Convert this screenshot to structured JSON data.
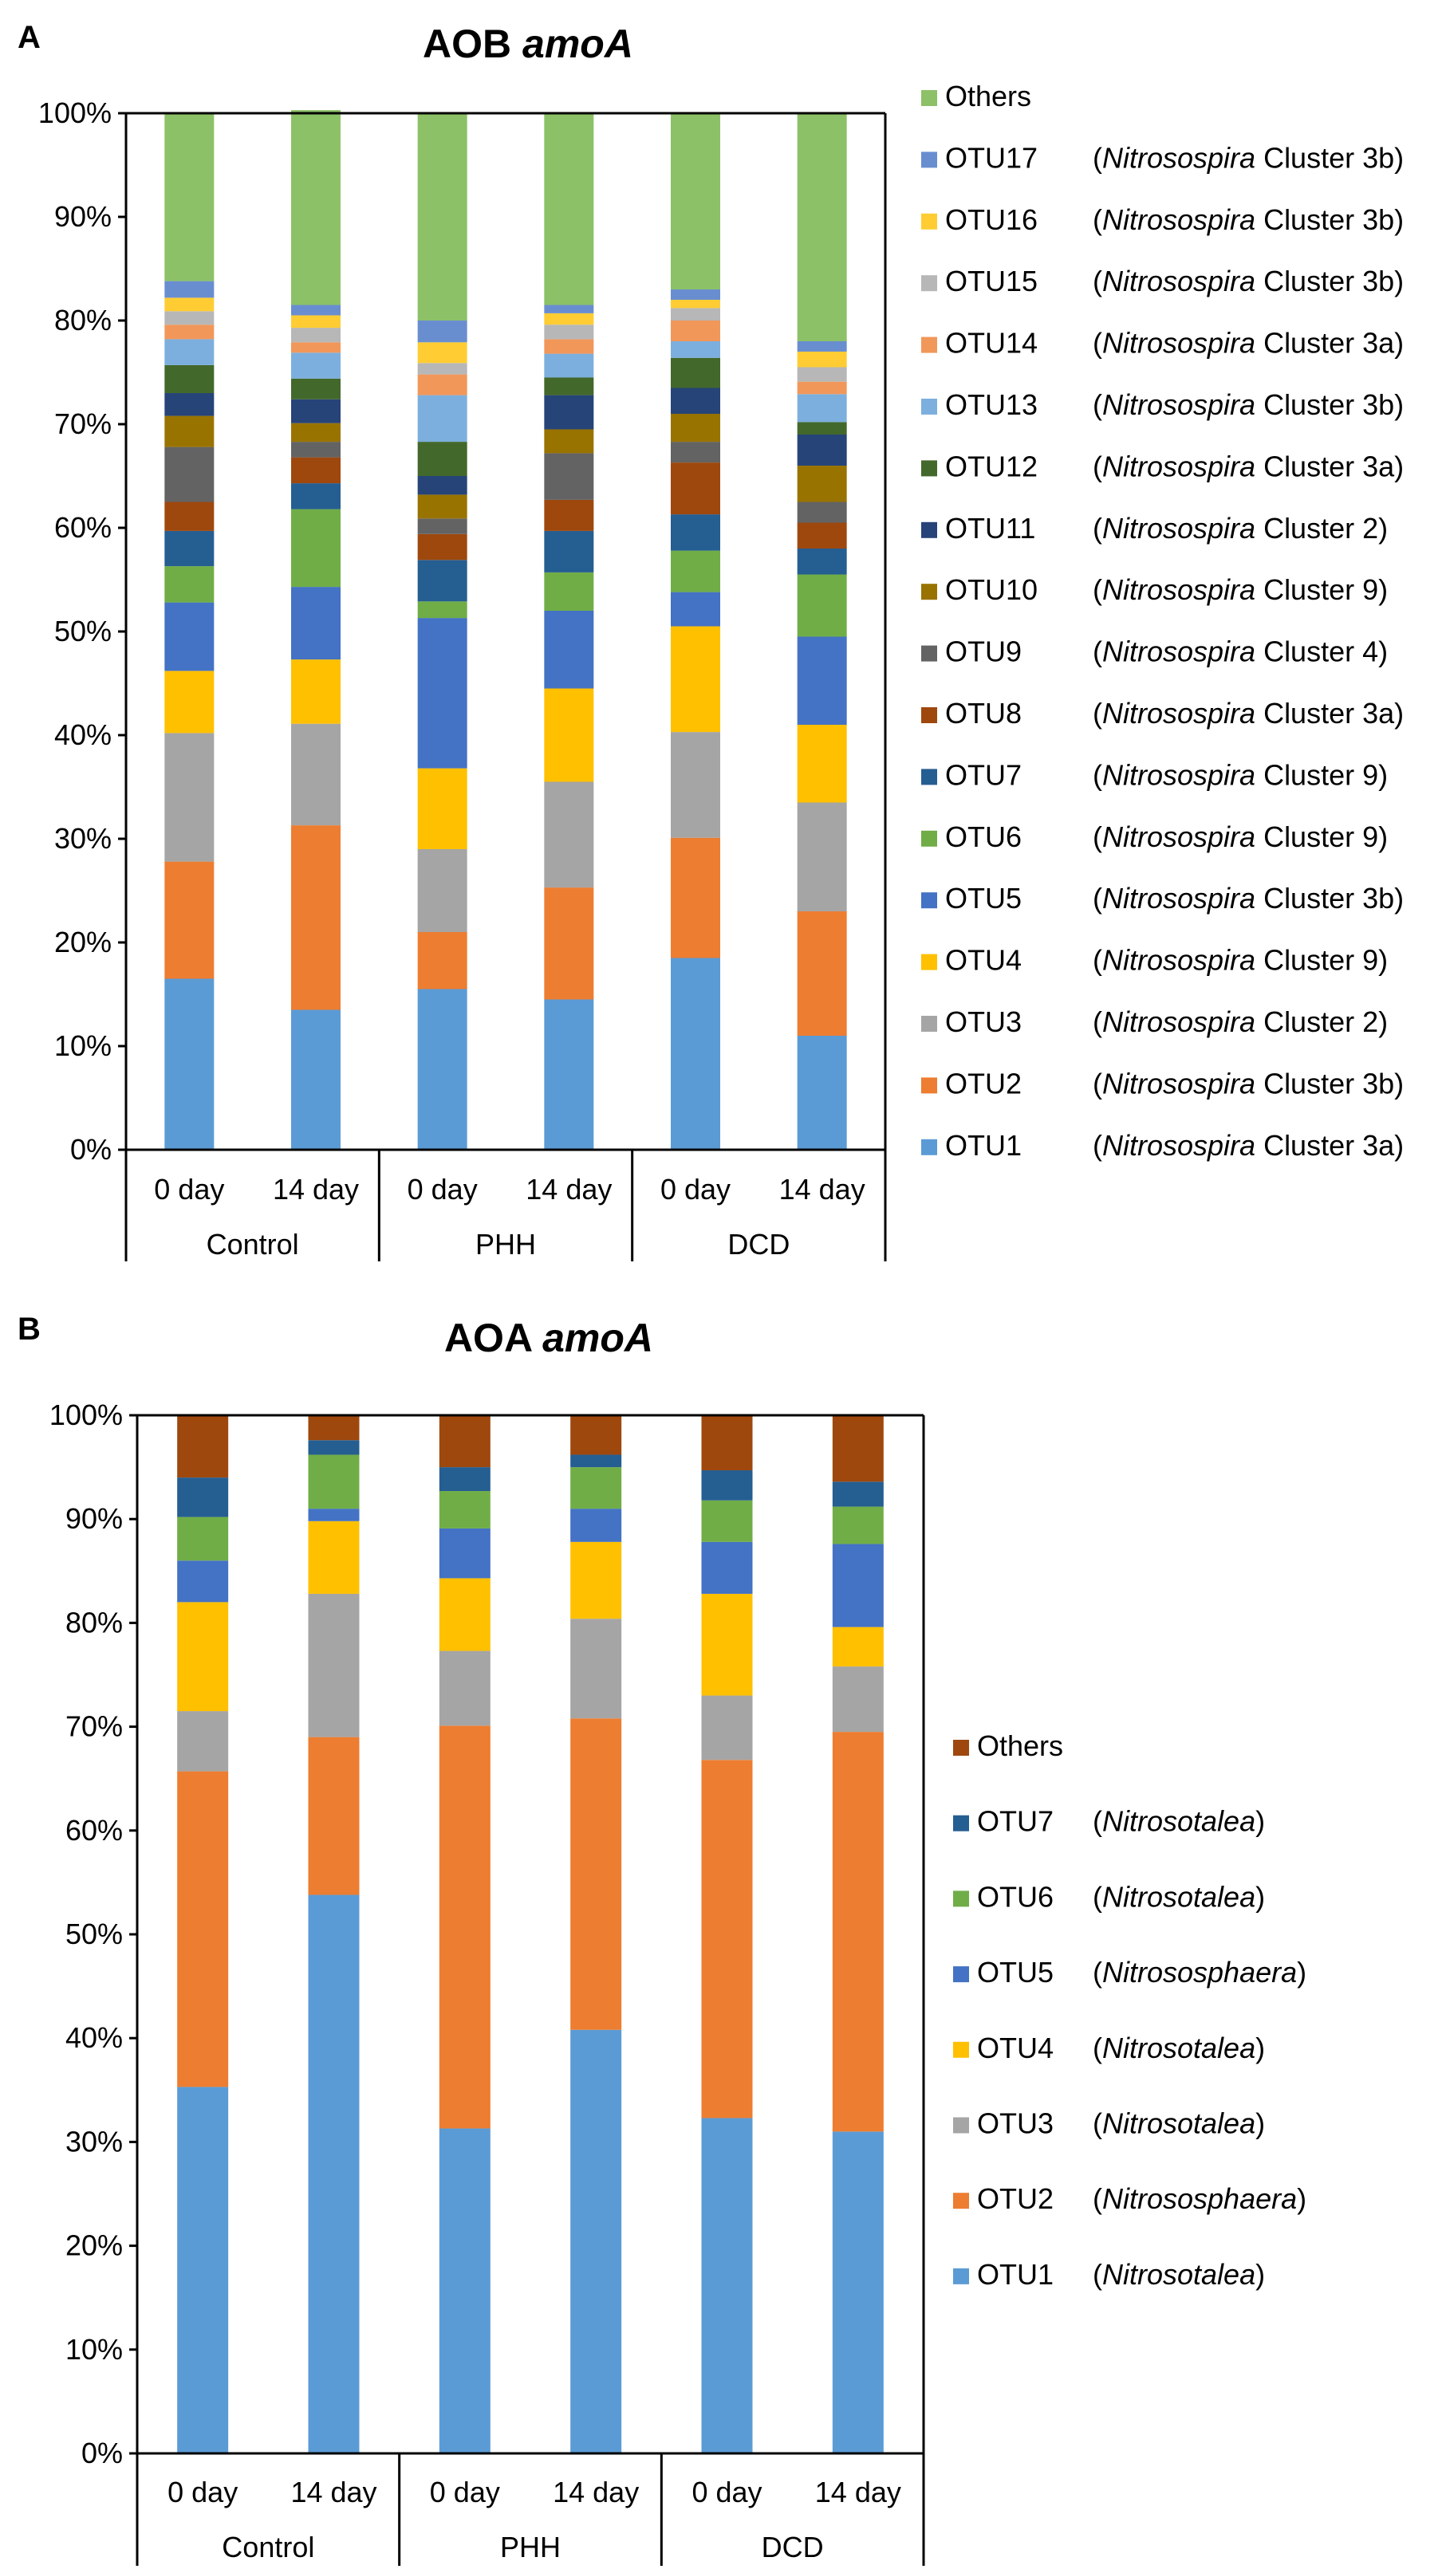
{
  "figure": {
    "panel_a": {
      "letter": "A",
      "title_plain": "AOB ",
      "title_italic": "amoA"
    },
    "panel_b": {
      "letter": "B",
      "title_plain": "AOA ",
      "title_italic": "amoA"
    }
  },
  "chart_data": [
    {
      "type": "bar",
      "stacked": true,
      "title": "AOB amoA",
      "xlabel": "",
      "ylabel": "",
      "ylim": [
        0,
        100
      ],
      "yticks": [
        "0%",
        "10%",
        "20%",
        "30%",
        "40%",
        "50%",
        "60%",
        "70%",
        "80%",
        "90%",
        "100%"
      ],
      "categories": [
        "0 day",
        "14 day",
        "0 day",
        "14 day",
        "0 day",
        "14 day"
      ],
      "groups": [
        {
          "label": "Control",
          "span": 2
        },
        {
          "label": "PHH",
          "span": 2
        },
        {
          "label": "DCD",
          "span": 2
        }
      ],
      "series": [
        {
          "name": "OTU1",
          "note": "Nitrosospira",
          "note_suffix": " Cluster 3a)",
          "color": "#5B9BD5",
          "values": [
            16.5,
            13.5,
            15.5,
            14.5,
            18.5,
            11.0
          ]
        },
        {
          "name": "OTU2",
          "note": "Nitrosospira",
          "note_suffix": " Cluster 3b)",
          "color": "#ED7D31",
          "values": [
            11.3,
            17.8,
            5.5,
            10.8,
            11.6,
            12.0
          ]
        },
        {
          "name": "OTU3",
          "note": "Nitrosospira",
          "note_suffix": " Cluster 2)",
          "color": "#A5A5A5",
          "values": [
            12.4,
            9.8,
            8.0,
            10.2,
            10.2,
            10.5
          ]
        },
        {
          "name": "OTU4",
          "note": "Nitrosospira",
          "note_suffix": " Cluster 9)",
          "color": "#FFC000",
          "values": [
            6.0,
            6.2,
            7.8,
            9.0,
            10.2,
            7.5
          ]
        },
        {
          "name": "OTU5",
          "note": "Nitrosospira",
          "note_suffix": " Cluster 3b)",
          "color": "#4472C4",
          "values": [
            6.6,
            7.0,
            14.5,
            7.5,
            3.3,
            8.5
          ]
        },
        {
          "name": "OTU6",
          "note": "Nitrosospira",
          "note_suffix": " Cluster 9)",
          "color": "#70AD47",
          "values": [
            3.5,
            7.5,
            1.6,
            3.7,
            4.0,
            6.0
          ]
        },
        {
          "name": "OTU7",
          "note": "Nitrosospira",
          "note_suffix": " Cluster 9)",
          "color": "#255E91",
          "values": [
            3.4,
            2.5,
            4.0,
            4.0,
            3.5,
            2.5
          ]
        },
        {
          "name": "OTU8",
          "note": "Nitrosospira",
          "note_suffix": " Cluster 3a)",
          "color": "#9E480E",
          "values": [
            2.8,
            2.5,
            2.5,
            3.0,
            5.0,
            2.5
          ]
        },
        {
          "name": "OTU9",
          "note": "Nitrosospira",
          "note_suffix": " Cluster 4)",
          "color": "#636363",
          "values": [
            5.3,
            1.5,
            1.5,
            4.5,
            2.0,
            2.0
          ]
        },
        {
          "name": "OTU10",
          "note": "Nitrosospira",
          "note_suffix": " Cluster 9)",
          "color": "#997300",
          "values": [
            3.0,
            1.8,
            2.3,
            2.3,
            2.7,
            3.5
          ]
        },
        {
          "name": "OTU11",
          "note": "Nitrosospira",
          "note_suffix": " Cluster 2)",
          "color": "#264478",
          "values": [
            2.2,
            2.3,
            1.8,
            3.3,
            2.5,
            3.0
          ]
        },
        {
          "name": "OTU12",
          "note": "Nitrosospira",
          "note_suffix": " Cluster 3a)",
          "color": "#43682B",
          "values": [
            2.7,
            2.0,
            3.3,
            1.7,
            2.9,
            1.2
          ]
        },
        {
          "name": "OTU13",
          "note": "Nitrosospira",
          "note_suffix": " Cluster 3b)",
          "color": "#7CAFDD",
          "values": [
            2.5,
            2.5,
            4.5,
            2.3,
            1.6,
            2.7
          ]
        },
        {
          "name": "OTU14",
          "note": "Nitrosospira",
          "note_suffix": " Cluster 3a)",
          "color": "#F1975A",
          "values": [
            1.4,
            1.0,
            2.0,
            1.4,
            2.0,
            1.2
          ]
        },
        {
          "name": "OTU15",
          "note": "Nitrosospira",
          "note_suffix": " Cluster 3b)",
          "color": "#B7B7B7",
          "values": [
            1.3,
            1.4,
            1.1,
            1.4,
            1.2,
            1.4
          ]
        },
        {
          "name": "OTU16",
          "note": "Nitrosospira",
          "note_suffix": " Cluster 3b)",
          "color": "#FFCD33",
          "values": [
            1.3,
            1.2,
            2.0,
            1.1,
            0.8,
            1.5
          ]
        },
        {
          "name": "OTU17",
          "note": "Nitrosospira",
          "note_suffix": " Cluster 3b)",
          "color": "#698ED0",
          "values": [
            1.6,
            1.0,
            2.1,
            0.8,
            1.0,
            1.0
          ]
        },
        {
          "name": "Others",
          "note": "",
          "note_suffix": "",
          "color": "#8CC168",
          "values": [
            16.2,
            18.8,
            19.9,
            18.5,
            17.0,
            22.0
          ]
        }
      ]
    },
    {
      "type": "bar",
      "stacked": true,
      "title": "AOA amoA",
      "xlabel": "",
      "ylabel": "",
      "ylim": [
        0,
        100
      ],
      "yticks": [
        "0%",
        "10%",
        "20%",
        "30%",
        "40%",
        "50%",
        "60%",
        "70%",
        "80%",
        "90%",
        "100%"
      ],
      "categories": [
        "0 day",
        "14 day",
        "0 day",
        "14 day",
        "0 day",
        "14 day"
      ],
      "groups": [
        {
          "label": "Control",
          "span": 2
        },
        {
          "label": "PHH",
          "span": 2
        },
        {
          "label": "DCD",
          "span": 2
        }
      ],
      "series": [
        {
          "name": "OTU1",
          "note": "Nitrosotalea",
          "note_suffix": ")",
          "color": "#5B9BD5",
          "values": [
            35.3,
            53.8,
            31.3,
            40.8,
            32.3,
            31.0
          ]
        },
        {
          "name": "OTU2",
          "note": "Nitrososphaera",
          "note_suffix": ")",
          "color": "#ED7D31",
          "values": [
            30.4,
            15.2,
            38.8,
            30.0,
            34.5,
            38.5
          ]
        },
        {
          "name": "OTU3",
          "note": "Nitrosotalea",
          "note_suffix": ")",
          "color": "#A5A5A5",
          "values": [
            5.8,
            13.8,
            7.2,
            9.6,
            6.2,
            6.3
          ]
        },
        {
          "name": "OTU4",
          "note": "Nitrosotalea",
          "note_suffix": ")",
          "color": "#FFC000",
          "values": [
            10.5,
            7.0,
            7.0,
            7.4,
            9.8,
            3.8
          ]
        },
        {
          "name": "OTU5",
          "note": "Nitrososphaera",
          "note_suffix": ")",
          "color": "#4472C4",
          "values": [
            4.0,
            1.2,
            4.8,
            3.2,
            5.0,
            8.0
          ]
        },
        {
          "name": "OTU6",
          "note": "Nitrosotalea",
          "note_suffix": ")",
          "color": "#70AD47",
          "values": [
            4.2,
            5.2,
            3.6,
            4.0,
            4.0,
            3.6
          ]
        },
        {
          "name": "OTU7",
          "note": "Nitrosotalea",
          "note_suffix": ")",
          "color": "#255E91",
          "values": [
            3.8,
            1.4,
            2.3,
            1.2,
            2.9,
            2.4
          ]
        },
        {
          "name": "Others",
          "note": "",
          "note_suffix": "",
          "color": "#9E480E",
          "values": [
            6.0,
            2.4,
            5.0,
            3.8,
            5.3,
            6.4
          ]
        }
      ]
    }
  ]
}
